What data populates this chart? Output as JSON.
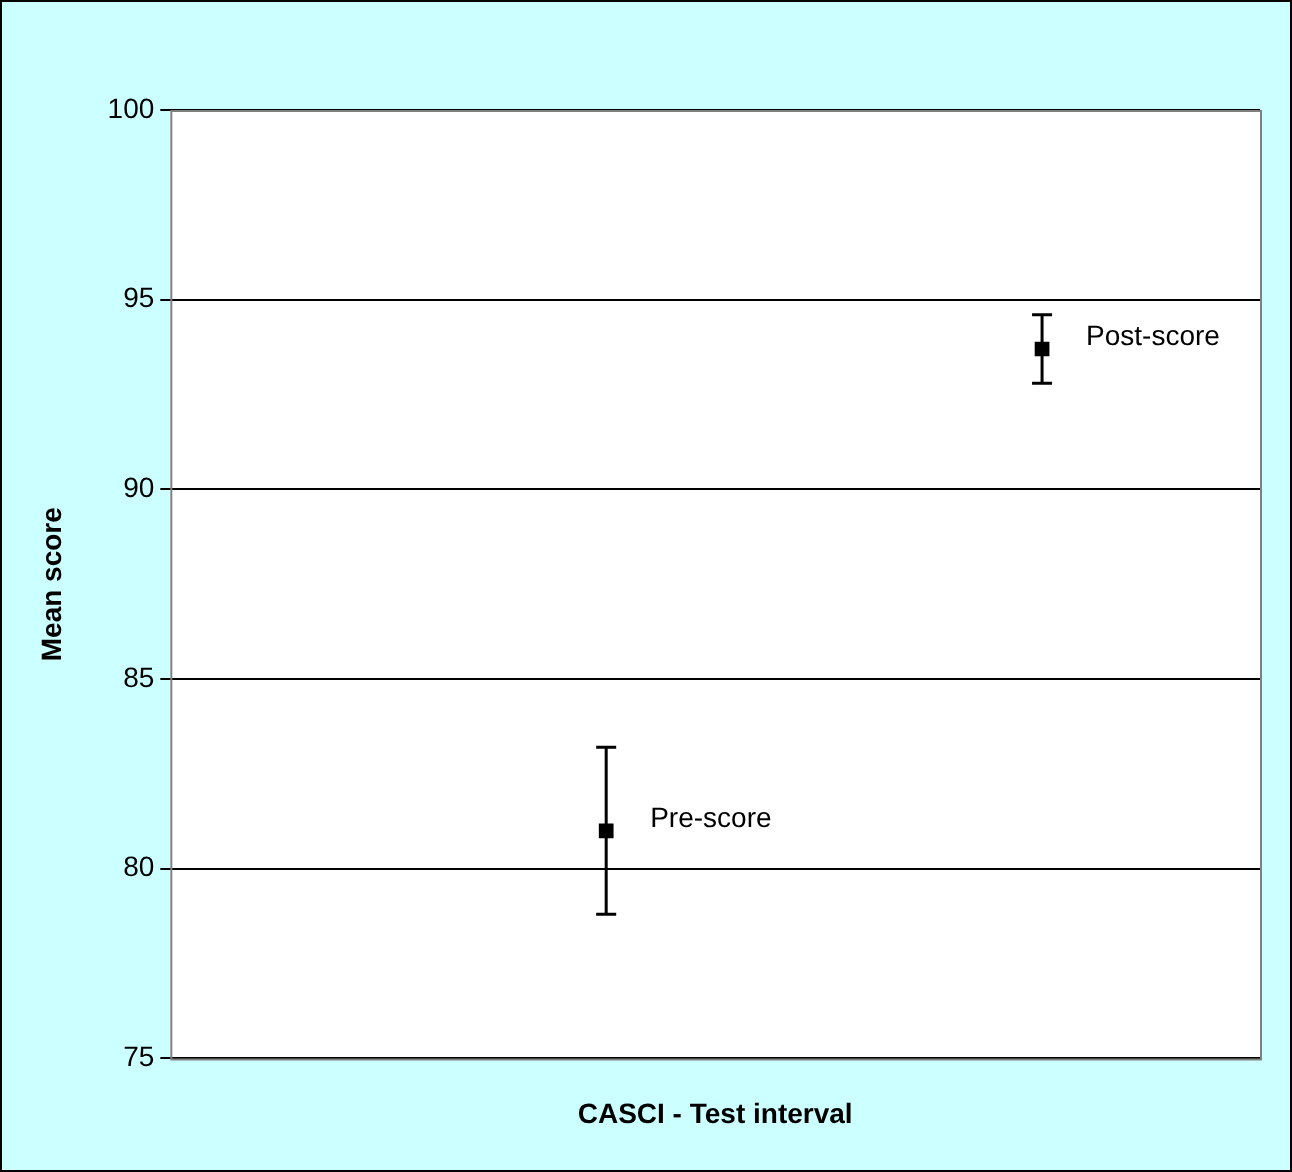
{
  "chart_data": {
    "type": "scatter",
    "xlabel": "CASCI - Test interval",
    "ylabel": "Mean score",
    "categories": [
      null,
      null,
      null,
      null,
      null,
      null
    ],
    "series": [
      {
        "name": "Pre-score",
        "color": "#000000",
        "values": [
          null,
          null,
          81,
          null,
          null,
          null
        ],
        "errors": [
          null,
          null,
          [
            78.8,
            83.2
          ],
          null,
          null,
          null
        ]
      },
      {
        "name": "Post-score",
        "color": "#000000",
        "values": [
          null,
          null,
          null,
          null,
          93.7,
          null
        ],
        "errors": [
          null,
          null,
          null,
          null,
          [
            92.8,
            94.6
          ],
          null
        ]
      }
    ],
    "ylim": [
      75,
      100
    ],
    "yticks": [
      75,
      80,
      85,
      90,
      95,
      100
    ],
    "grid": "y",
    "marker": "square",
    "tick_labels": "y"
  }
}
